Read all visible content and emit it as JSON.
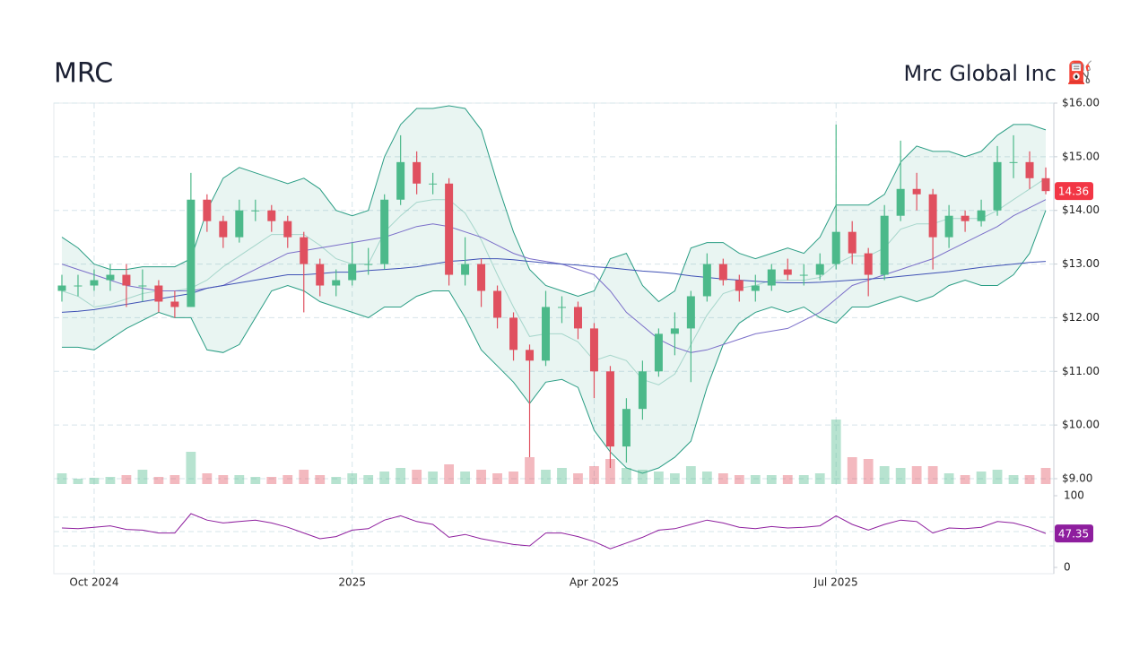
{
  "chart_data": {
    "type": "candlestick",
    "title": "MRC",
    "subtitle": "Mrc Global Inc",
    "icon": "⛽",
    "up_color": "#4cb98a",
    "down_color": "#e0505f",
    "categories": [
      null,
      null,
      "Oct 2024",
      null,
      null,
      null,
      null,
      null,
      null,
      null,
      null,
      null,
      null,
      null,
      null,
      null,
      null,
      null,
      "2025",
      null,
      null,
      null,
      null,
      null,
      null,
      null,
      null,
      null,
      null,
      null,
      null,
      null,
      null,
      "Apr 2025",
      null,
      null,
      null,
      null,
      null,
      null,
      null,
      null,
      null,
      null,
      null,
      null,
      null,
      null,
      "Jul 2025",
      null,
      null,
      null,
      null,
      null,
      null,
      null,
      null,
      null,
      null,
      null,
      null,
      null
    ],
    "open": [
      12.5,
      12.6,
      12.6,
      12.7,
      12.8,
      12.6,
      12.6,
      12.3,
      12.2,
      14.2,
      13.8,
      13.5,
      14.0,
      14.0,
      13.8,
      13.5,
      13.0,
      12.6,
      12.7,
      13.0,
      13.0,
      14.2,
      14.9,
      14.5,
      14.5,
      12.8,
      13.0,
      12.5,
      12.0,
      11.4,
      11.2,
      12.2,
      12.2,
      11.8,
      11.0,
      9.6,
      10.3,
      11.0,
      11.7,
      11.8,
      12.4,
      13.0,
      12.7,
      12.5,
      12.6,
      12.9,
      12.8,
      12.8,
      13.0,
      13.6,
      13.2,
      12.8,
      13.9,
      14.4,
      14.3,
      13.5,
      13.9,
      13.8,
      14.0,
      14.9,
      14.9,
      14.6
    ],
    "high": [
      12.8,
      12.8,
      12.9,
      13.0,
      13.0,
      12.9,
      12.7,
      12.5,
      14.7,
      14.3,
      13.9,
      14.2,
      14.2,
      14.1,
      13.9,
      13.6,
      13.1,
      12.9,
      13.4,
      13.3,
      14.3,
      15.4,
      15.1,
      14.7,
      14.6,
      13.5,
      13.1,
      12.6,
      12.1,
      11.5,
      12.5,
      12.4,
      12.3,
      11.9,
      11.1,
      10.5,
      11.2,
      11.8,
      12.1,
      12.5,
      13.2,
      13.1,
      12.8,
      12.8,
      13.0,
      13.1,
      13.0,
      13.2,
      15.6,
      13.8,
      13.3,
      14.1,
      15.3,
      14.7,
      14.4,
      14.1,
      14.0,
      14.2,
      15.2,
      15.4,
      15.1,
      14.8
    ],
    "low": [
      12.3,
      12.4,
      12.5,
      12.5,
      12.2,
      12.3,
      12.1,
      12.0,
      12.2,
      13.6,
      13.3,
      13.4,
      13.8,
      13.6,
      13.3,
      12.1,
      12.4,
      12.4,
      12.6,
      12.8,
      12.9,
      14.1,
      14.3,
      14.3,
      12.6,
      12.6,
      12.2,
      11.8,
      11.2,
      9.4,
      11.1,
      11.9,
      11.6,
      10.5,
      9.2,
      9.3,
      10.1,
      10.9,
      11.3,
      10.8,
      12.3,
      12.6,
      12.3,
      12.3,
      12.5,
      12.7,
      12.6,
      12.7,
      12.9,
      13.0,
      12.4,
      12.7,
      13.8,
      14.0,
      12.9,
      13.3,
      13.6,
      13.7,
      13.9,
      14.6,
      14.4,
      14.3
    ],
    "close": [
      12.6,
      12.6,
      12.7,
      12.8,
      12.6,
      12.6,
      12.3,
      12.2,
      14.2,
      13.8,
      13.5,
      14.0,
      14.0,
      13.8,
      13.5,
      13.0,
      12.6,
      12.7,
      13.0,
      13.0,
      14.2,
      14.9,
      14.5,
      14.5,
      12.8,
      13.0,
      12.5,
      12.0,
      11.4,
      11.2,
      12.2,
      12.2,
      11.8,
      11.0,
      9.6,
      10.3,
      11.0,
      11.7,
      11.8,
      12.4,
      13.0,
      12.7,
      12.5,
      12.6,
      12.9,
      12.8,
      12.8,
      13.0,
      13.6,
      13.2,
      12.8,
      13.9,
      14.4,
      14.3,
      13.5,
      13.9,
      13.8,
      14.0,
      14.9,
      14.9,
      14.6,
      14.36
    ],
    "volume": [
      600000,
      300000,
      350000,
      400000,
      500000,
      800000,
      400000,
      500000,
      1800000,
      600000,
      500000,
      500000,
      400000,
      400000,
      500000,
      800000,
      500000,
      400000,
      600000,
      500000,
      700000,
      900000,
      800000,
      700000,
      1100000,
      700000,
      800000,
      600000,
      700000,
      1500000,
      800000,
      900000,
      600000,
      1000000,
      1400000,
      900000,
      800000,
      700000,
      600000,
      1000000,
      700000,
      600000,
      500000,
      500000,
      500000,
      500000,
      500000,
      600000,
      3600000,
      1500000,
      1400000,
      1000000,
      900000,
      1000000,
      1000000,
      600000,
      500000,
      700000,
      800000,
      500000,
      500000,
      900000
    ],
    "volume_lim": [
      0,
      4000000
    ],
    "ylim": [
      9,
      16
    ],
    "yticks": [
      {
        "value": 9,
        "label": "$9.00"
      },
      {
        "value": 10,
        "label": "$10.00"
      },
      {
        "value": 11,
        "label": "$11.00"
      },
      {
        "value": 12,
        "label": "$12.00"
      },
      {
        "value": 13,
        "label": "$13.00"
      },
      {
        "value": 14,
        "label": "$14.00"
      },
      {
        "value": 15,
        "label": "$15.00"
      },
      {
        "value": 16,
        "label": "$16.00"
      }
    ],
    "grid": true,
    "bollinger": {
      "color": "#2a9d84",
      "fill": "rgba(42,157,132,0.10)",
      "upper": [
        13.5,
        13.3,
        13.0,
        12.9,
        12.9,
        12.95,
        12.95,
        12.95,
        13.1,
        14.0,
        14.6,
        14.8,
        14.7,
        14.6,
        14.5,
        14.6,
        14.4,
        14.0,
        13.9,
        14.0,
        15.0,
        15.6,
        15.9,
        15.9,
        15.95,
        15.9,
        15.5,
        14.5,
        13.6,
        12.9,
        12.6,
        12.5,
        12.4,
        12.5,
        13.1,
        13.2,
        12.6,
        12.3,
        12.5,
        13.3,
        13.4,
        13.4,
        13.2,
        13.1,
        13.2,
        13.3,
        13.2,
        13.5,
        14.1,
        14.1,
        14.1,
        14.3,
        14.9,
        15.2,
        15.1,
        15.1,
        15.0,
        15.1,
        15.4,
        15.6,
        15.6,
        15.5
      ],
      "middle": [
        12.5,
        12.4,
        12.2,
        12.25,
        12.35,
        12.45,
        12.5,
        12.5,
        12.55,
        12.7,
        12.95,
        13.15,
        13.35,
        13.55,
        13.55,
        13.55,
        13.35,
        13.1,
        13.0,
        13.0,
        13.6,
        13.9,
        14.15,
        14.2,
        14.2,
        13.95,
        13.45,
        12.8,
        12.2,
        11.65,
        11.7,
        11.7,
        11.55,
        11.2,
        11.3,
        11.2,
        10.85,
        10.75,
        10.95,
        11.5,
        12.05,
        12.45,
        12.55,
        12.6,
        12.7,
        12.7,
        12.7,
        12.75,
        13.0,
        13.15,
        13.15,
        13.3,
        13.65,
        13.75,
        13.75,
        13.85,
        13.85,
        13.85,
        14.0,
        14.2,
        14.4,
        14.6
      ],
      "lower": [
        11.45,
        11.45,
        11.4,
        11.6,
        11.8,
        11.95,
        12.1,
        12.0,
        12.0,
        11.4,
        11.35,
        11.5,
        12.0,
        12.5,
        12.6,
        12.5,
        12.3,
        12.2,
        12.1,
        12.0,
        12.2,
        12.2,
        12.4,
        12.5,
        12.5,
        12.0,
        11.4,
        11.1,
        10.8,
        10.4,
        10.8,
        10.85,
        10.7,
        9.9,
        9.5,
        9.2,
        9.1,
        9.2,
        9.4,
        9.7,
        10.7,
        11.5,
        11.9,
        12.1,
        12.2,
        12.1,
        12.2,
        12.0,
        11.9,
        12.2,
        12.2,
        12.3,
        12.4,
        12.3,
        12.4,
        12.6,
        12.7,
        12.6,
        12.6,
        12.8,
        13.2,
        14.0
      ]
    },
    "moving_averages": [
      {
        "color": "#7b6fc9",
        "values": [
          13.0,
          12.9,
          12.8,
          12.7,
          12.6,
          12.55,
          12.5,
          12.5,
          12.5,
          12.55,
          12.6,
          12.75,
          12.9,
          13.05,
          13.2,
          13.25,
          13.3,
          13.35,
          13.4,
          13.45,
          13.5,
          13.6,
          13.7,
          13.75,
          13.7,
          13.6,
          13.5,
          13.35,
          13.2,
          13.1,
          13.05,
          13.0,
          12.9,
          12.8,
          12.5,
          12.1,
          11.85,
          11.6,
          11.45,
          11.35,
          11.4,
          11.5,
          11.6,
          11.7,
          11.75,
          11.8,
          11.95,
          12.1,
          12.35,
          12.6,
          12.7,
          12.8,
          12.9,
          13.0,
          13.1,
          13.25,
          13.4,
          13.55,
          13.7,
          13.9,
          14.05,
          14.2
        ]
      },
      {
        "color": "#3f51b5",
        "values": [
          12.1,
          12.12,
          12.15,
          12.2,
          12.25,
          12.3,
          12.35,
          12.4,
          12.45,
          12.55,
          12.6,
          12.65,
          12.7,
          12.75,
          12.8,
          12.8,
          12.82,
          12.85,
          12.85,
          12.88,
          12.9,
          12.92,
          12.95,
          13.0,
          13.05,
          13.07,
          13.1,
          13.1,
          13.08,
          13.05,
          13.02,
          13.0,
          12.98,
          12.95,
          12.93,
          12.9,
          12.87,
          12.85,
          12.82,
          12.78,
          12.75,
          12.72,
          12.7,
          12.68,
          12.66,
          12.65,
          12.65,
          12.66,
          12.68,
          12.7,
          12.72,
          12.74,
          12.77,
          12.8,
          12.83,
          12.86,
          12.9,
          12.94,
          12.97,
          13.0,
          13.03,
          13.05
        ]
      }
    ],
    "last_price_color": "#f23645",
    "rsi": {
      "color": "#8e1e9e",
      "values": [
        55,
        54,
        56,
        58,
        53,
        52,
        48,
        48,
        75,
        66,
        62,
        64,
        66,
        62,
        56,
        48,
        40,
        43,
        52,
        54,
        66,
        72,
        64,
        60,
        42,
        46,
        40,
        36,
        32,
        30,
        48,
        48,
        43,
        36,
        26,
        34,
        42,
        52,
        54,
        60,
        66,
        62,
        56,
        54,
        57,
        55,
        56,
        58,
        72,
        60,
        52,
        60,
        66,
        64,
        48,
        55,
        54,
        56,
        64,
        62,
        56,
        47.35
      ],
      "ylim": [
        0,
        100
      ],
      "yticks": [
        0,
        100
      ],
      "guides": [
        30,
        50,
        70
      ]
    }
  }
}
